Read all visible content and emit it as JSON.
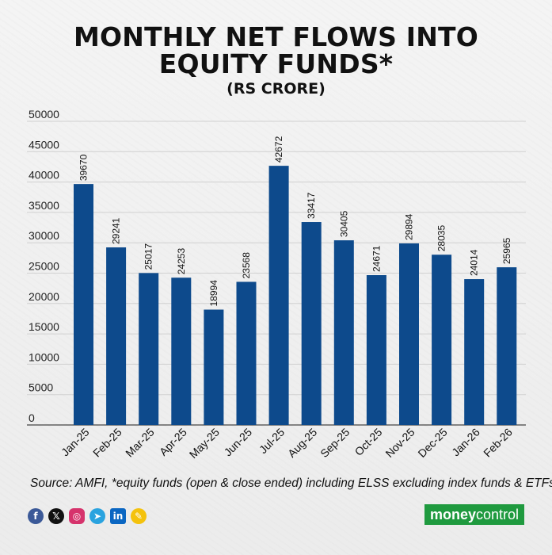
{
  "title_line1": "MONTHLY NET FLOWS INTO",
  "title_line2": "EQUITY FUNDS*",
  "subtitle": "(RS CRORE)",
  "source": "Source: AMFI, *equity funds (open & close ended) including ELSS excluding index funds & ETFs",
  "brand": {
    "part1": "money",
    "part2": "control",
    "color": "#1f9a3f"
  },
  "socials": [
    {
      "name": "facebook-icon",
      "glyph": "f",
      "color": "#3b5998"
    },
    {
      "name": "x-icon",
      "glyph": "𝕏",
      "color": "#111111"
    },
    {
      "name": "instagram-icon",
      "glyph": "◎",
      "color": "#d6336c"
    },
    {
      "name": "telegram-icon",
      "glyph": "➤",
      "color": "#2aa3df"
    },
    {
      "name": "linkedin-icon",
      "glyph": "in",
      "color": "#0a66c2"
    },
    {
      "name": "koo-icon",
      "glyph": "✎",
      "color": "#f4c20d"
    }
  ],
  "chart_data": {
    "type": "bar",
    "categories": [
      "Jan-25",
      "Feb-25",
      "Mar-25",
      "Apr-25",
      "May-25",
      "Jun-25",
      "Jul-25",
      "Aug-25",
      "Sep-25",
      "Oct-25",
      "Nov-25",
      "Dec-25",
      "Jan-26",
      "Feb-26"
    ],
    "values": [
      39670,
      29241,
      25017,
      24253,
      18994,
      23568,
      42672,
      33417,
      30405,
      24671,
      29894,
      28035,
      24014,
      25965
    ],
    "yticks": [
      0,
      5000,
      10000,
      15000,
      20000,
      25000,
      30000,
      35000,
      40000,
      45000,
      50000
    ],
    "ylim": [
      0,
      50000
    ],
    "title": "MONTHLY NET FLOWS INTO EQUITY FUNDS*",
    "subtitle": "(RS CRORE)",
    "xlabel": "",
    "ylabel": "",
    "grid": true,
    "legend": "none",
    "bar_color": "#0d4a8c"
  }
}
